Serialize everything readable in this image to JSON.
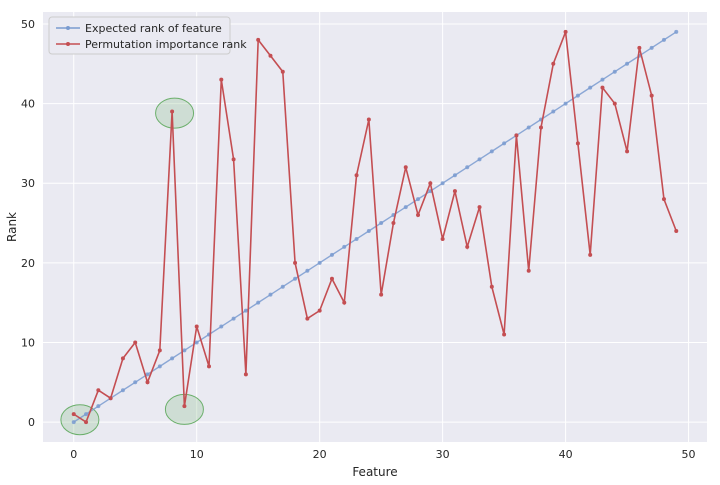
{
  "chart_data": {
    "type": "line",
    "xlabel": "Feature",
    "ylabel": "Rank",
    "xlim": [
      -2.5,
      51.5
    ],
    "ylim": [
      -2.5,
      51.5
    ],
    "xticks": [
      0,
      10,
      20,
      30,
      40,
      50
    ],
    "yticks": [
      0,
      10,
      20,
      30,
      40,
      50
    ],
    "grid": true,
    "legend_position": "top-left",
    "background": "#EAEAF2",
    "series": [
      {
        "name": "Expected rank of feature",
        "color": "#7A9BD0",
        "x": [
          0,
          1,
          2,
          3,
          4,
          5,
          6,
          7,
          8,
          9,
          10,
          11,
          12,
          13,
          14,
          15,
          16,
          17,
          18,
          19,
          20,
          21,
          22,
          23,
          24,
          25,
          26,
          27,
          28,
          29,
          30,
          31,
          32,
          33,
          34,
          35,
          36,
          37,
          38,
          39,
          40,
          41,
          42,
          43,
          44,
          45,
          46,
          47,
          48,
          49
        ],
        "values": [
          0,
          1,
          2,
          3,
          4,
          5,
          6,
          7,
          8,
          9,
          10,
          11,
          12,
          13,
          14,
          15,
          16,
          17,
          18,
          19,
          20,
          21,
          22,
          23,
          24,
          25,
          26,
          27,
          28,
          29,
          30,
          31,
          32,
          33,
          34,
          35,
          36,
          37,
          38,
          39,
          40,
          41,
          42,
          43,
          44,
          45,
          46,
          47,
          48,
          49
        ]
      },
      {
        "name": "Permutation importance rank",
        "color": "#C44E52",
        "x": [
          0,
          1,
          2,
          3,
          4,
          5,
          6,
          7,
          8,
          9,
          10,
          11,
          12,
          13,
          14,
          15,
          16,
          17,
          18,
          19,
          20,
          21,
          22,
          23,
          24,
          25,
          26,
          27,
          28,
          29,
          30,
          31,
          32,
          33,
          34,
          35,
          36,
          37,
          38,
          39,
          40,
          41,
          42,
          43,
          44,
          45,
          46,
          47,
          48,
          49
        ],
        "values": [
          1,
          0,
          4,
          3,
          8,
          10,
          5,
          9,
          39,
          2,
          12,
          7,
          43,
          33,
          6,
          48,
          46,
          44,
          20,
          13,
          14,
          18,
          15,
          31,
          38,
          16,
          25,
          32,
          26,
          30,
          23,
          29,
          22,
          27,
          17,
          11,
          36,
          19,
          37,
          45,
          49,
          35,
          21,
          42,
          40,
          34,
          47,
          41,
          28,
          24
        ]
      }
    ],
    "annotations": [
      {
        "type": "circle",
        "x": 0.5,
        "y": 0.3,
        "color": "#8FBF8F"
      },
      {
        "type": "circle",
        "x": 8.2,
        "y": 38.8,
        "color": "#8FBF8F"
      },
      {
        "type": "circle",
        "x": 9.0,
        "y": 1.6,
        "color": "#8FBF8F"
      }
    ]
  }
}
